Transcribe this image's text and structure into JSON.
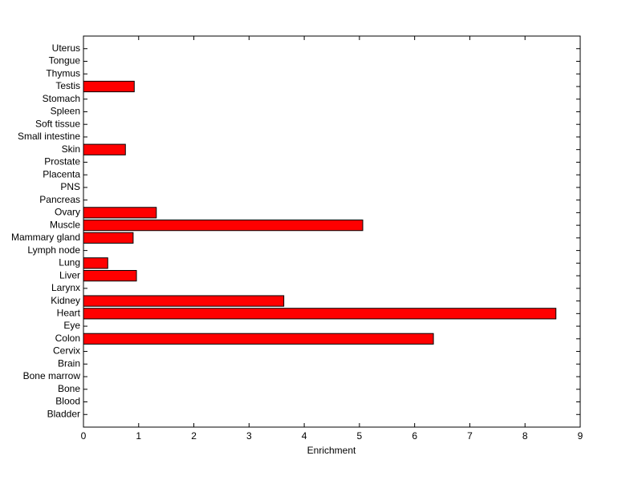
{
  "chart_data": {
    "type": "barh",
    "x_label": "Enrichment",
    "categories": [
      "Bladder",
      "Blood",
      "Bone",
      "Bone marrow",
      "Brain",
      "Cervix",
      "Colon",
      "Eye",
      "Heart",
      "Kidney",
      "Larynx",
      "Liver",
      "Lung",
      "Lymph node",
      "Mammary gland",
      "Muscle",
      "Ovary",
      "Pancreas",
      "PNS",
      "Placenta",
      "Prostate",
      "Skin",
      "Small intestine",
      "Soft tissue",
      "Spleen",
      "Stomach",
      "Testis",
      "Thymus",
      "Tongue",
      "Uterus"
    ],
    "values": [
      0,
      0,
      0,
      0,
      0,
      0,
      6.34,
      0,
      8.56,
      3.63,
      0,
      0.96,
      0.44,
      0,
      0.9,
      5.06,
      1.32,
      0,
      0,
      0,
      0,
      0.76,
      0,
      0,
      0,
      0,
      0.92,
      0,
      0,
      0
    ],
    "color": "#ff0000",
    "xlim": [
      0,
      9
    ],
    "xticks": [
      0,
      1,
      2,
      3,
      4,
      5,
      6,
      7,
      8,
      9
    ]
  }
}
